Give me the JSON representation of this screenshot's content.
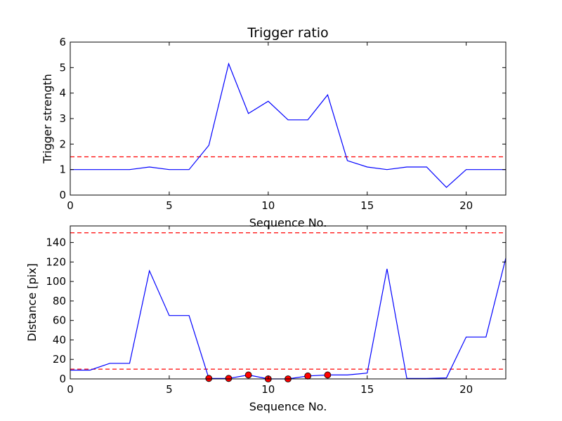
{
  "chart_data": [
    {
      "type": "line",
      "title": "Trigger ratio",
      "xlabel": "Sequence No.",
      "ylabel": "Trigger strength",
      "xlim": [
        0,
        22
      ],
      "ylim": [
        0,
        6
      ],
      "xticks": [
        0,
        5,
        10,
        15,
        20
      ],
      "yticks": [
        0,
        1,
        2,
        3,
        4,
        5,
        6
      ],
      "grid": false,
      "series": [
        {
          "color": "#0000ff",
          "x": [
            0,
            1,
            2,
            3,
            4,
            5,
            6,
            7,
            8,
            9,
            10,
            11,
            12,
            13,
            14,
            15,
            16,
            17,
            18,
            19,
            20,
            21,
            22
          ],
          "y": [
            1.0,
            1.0,
            1.0,
            1.0,
            1.1,
            1.0,
            1.0,
            1.95,
            5.15,
            3.2,
            3.68,
            2.95,
            2.95,
            3.93,
            1.35,
            1.1,
            1.0,
            1.1,
            1.1,
            0.3,
            1.0,
            1.0,
            1.0
          ]
        }
      ],
      "reference_lines": [
        {
          "y": 1.5,
          "color": "#ff0000",
          "style": "dashed"
        }
      ]
    },
    {
      "type": "line",
      "title": "",
      "xlabel": "Sequence No.",
      "ylabel": "Distance [pix]",
      "xlim": [
        0,
        22
      ],
      "ylim": [
        0,
        157
      ],
      "xticks": [
        0,
        5,
        10,
        15,
        20
      ],
      "yticks": [
        0,
        20,
        40,
        60,
        80,
        100,
        120,
        140
      ],
      "grid": false,
      "series": [
        {
          "color": "#0000ff",
          "x": [
            0,
            1,
            2,
            3,
            4,
            5,
            6,
            7,
            8,
            9,
            10,
            11,
            12,
            13,
            14,
            15,
            16,
            17,
            18,
            19,
            20,
            21,
            22
          ],
          "y": [
            9,
            9,
            16,
            16,
            111,
            65,
            65,
            0.5,
            0.5,
            4,
            0,
            0,
            3,
            4,
            4,
            6,
            113,
            0.5,
            0.5,
            1,
            43,
            43,
            124
          ]
        }
      ],
      "markers": {
        "color": "#ff0000",
        "x": [
          7,
          8,
          9,
          10,
          11,
          12,
          13
        ],
        "y": [
          0.5,
          0.5,
          4,
          0,
          0,
          3,
          4
        ]
      },
      "reference_lines": [
        {
          "y": 10,
          "color": "#ff0000",
          "style": "dashed"
        },
        {
          "y": 150,
          "color": "#ff0000",
          "style": "dashed"
        }
      ]
    }
  ]
}
